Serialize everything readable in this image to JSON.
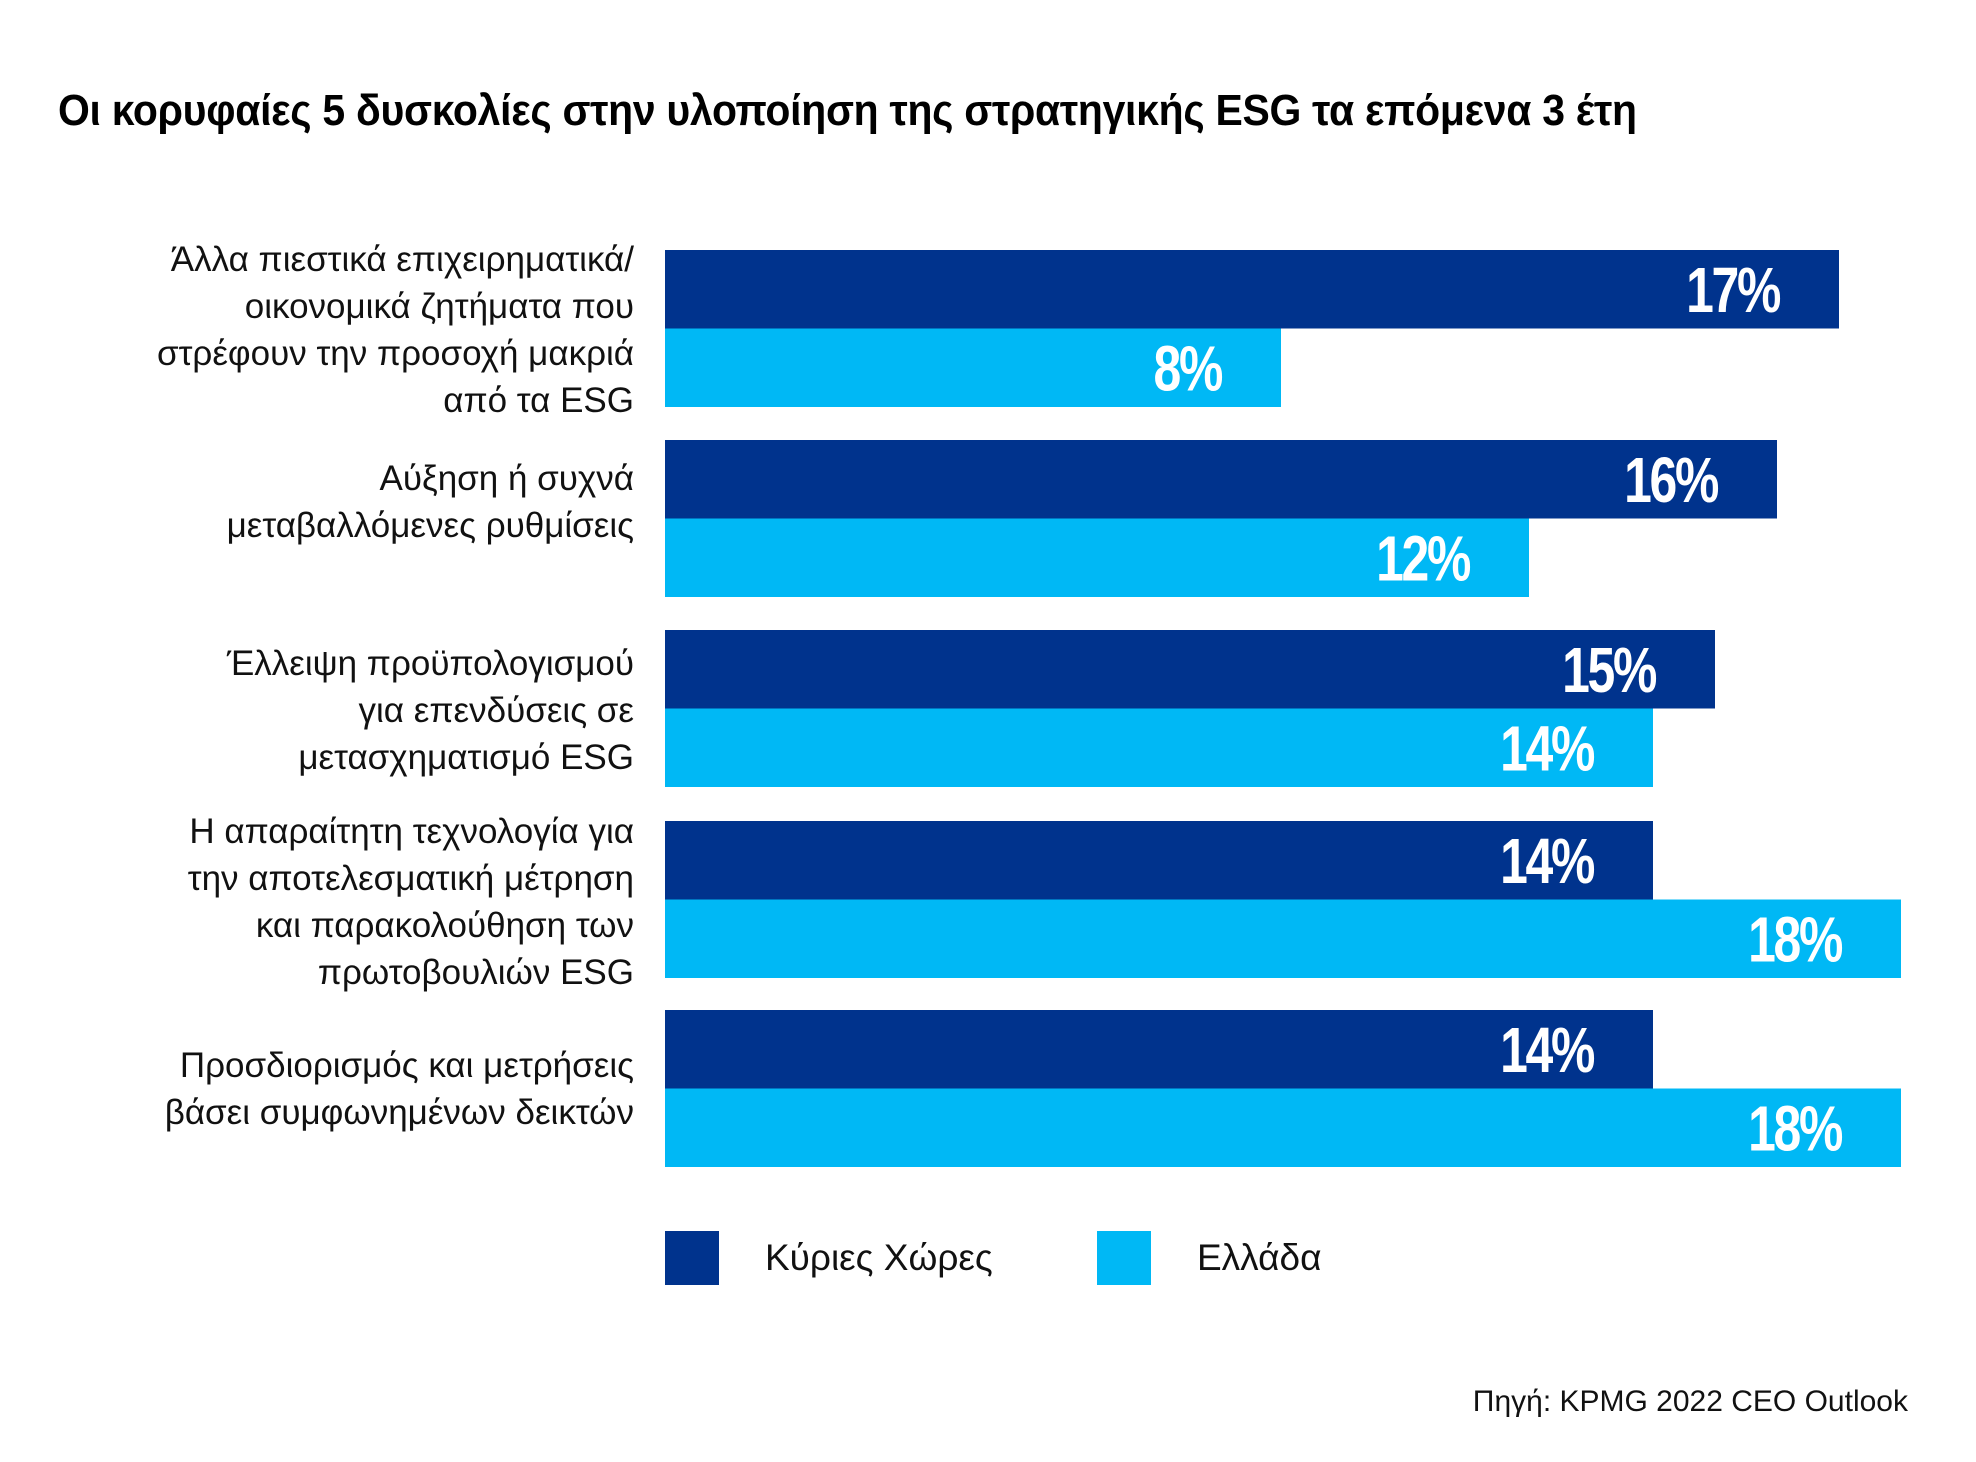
{
  "title": "Οι κορυφαίες 5 δυσκολίες στην υλοποίηση της στρατηγικής ESG τα επόμενα 3 έτη",
  "source": "Πηγή: KPMG 2022 CEO Outlook",
  "colors": {
    "main_countries": "#00338D",
    "greece": "#00B8F5"
  },
  "chart_data": {
    "type": "bar",
    "orientation": "horizontal",
    "title": "Οι κορυφαίες 5 δυσκολίες στην υλοποίηση της στρατηγικής ESG τα επόμενα 3 έτη",
    "xlabel": "",
    "ylabel": "",
    "unit": "%",
    "grid": false,
    "legend_position": "bottom",
    "categories": [
      "Άλλα πιεστικά επιχειρηματικά/ οικονομικά ζητήματα που στρέφουν την προσοχή μακριά από τα ESG",
      "Αύξηση ή συχνά μεταβαλλόμενες ρυθμίσεις",
      "Έλλειψη προϋπολογισμού για επενδύσεις σε μετασχηματισμό ESG",
      "Η απαραίτητη τεχνολογία για την αποτελεσματική μέτρηση και παρακολούθηση των πρωτοβουλιών  ESG",
      "Προσδιορισμός και μετρήσεις βάσει συμφωνημένων δεικτών"
    ],
    "category_lines": [
      [
        "Άλλα πιεστικά επιχειρηματικά/",
        "οικονομικά ζητήματα που",
        "στρέφουν την προσοχή μακριά",
        "από τα ESG"
      ],
      [
        "Αύξηση ή συχνά",
        "μεταβαλλόμενες ρυθμίσεις"
      ],
      [
        "Έλλειψη προϋπολογισμού",
        "για επενδύσεις σε",
        "μετασχηματισμό ESG"
      ],
      [
        "Η απαραίτητη τεχνολογία για",
        "την αποτελεσματική μέτρηση",
        "και παρακολούθηση των",
        "πρωτοβουλιών  ESG"
      ],
      [
        "Προσδιορισμός και μετρήσεις",
        "βάσει συμφωνημένων δεικτών"
      ]
    ],
    "series": [
      {
        "name": "Κύριες Χώρες",
        "color": "#00338D",
        "values": [
          17,
          16,
          15,
          14,
          14
        ]
      },
      {
        "name": "Ελλάδα",
        "color": "#00B8F5",
        "values": [
          8,
          12,
          14,
          18,
          18
        ]
      }
    ],
    "data_labels": [
      [
        "17%",
        "16%",
        "15%",
        "14%",
        "14%"
      ],
      [
        "8%",
        "12%",
        "14%",
        "18%",
        "18%"
      ]
    ]
  },
  "legend": [
    {
      "label": "Κύριες Χώρες",
      "color": "#00338D"
    },
    {
      "label": "Ελλάδα",
      "color": "#00B8F5"
    }
  ]
}
